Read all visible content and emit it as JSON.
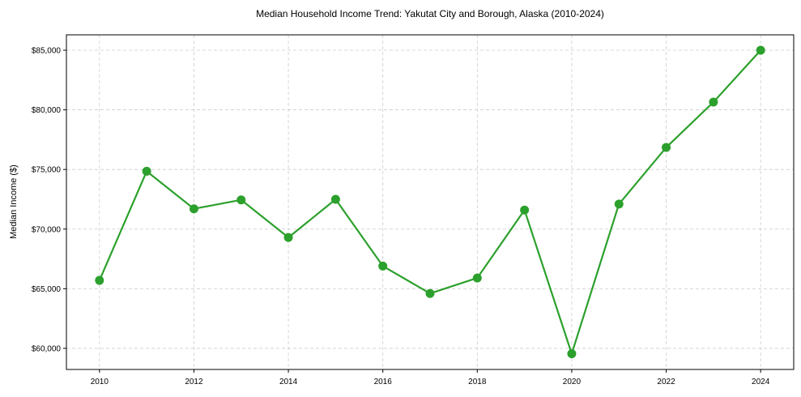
{
  "chart_data": {
    "type": "line",
    "title": "Median Household Income Trend: Yakutat City and Borough, Alaska (2010-2024)",
    "xlabel": "",
    "ylabel": "Median Income ($)",
    "x": [
      2010,
      2011,
      2012,
      2013,
      2014,
      2015,
      2016,
      2017,
      2018,
      2019,
      2020,
      2021,
      2022,
      2023,
      2024
    ],
    "series": [
      {
        "name": "Median Household Income",
        "color": "#2ca02c",
        "values": [
          65700,
          74850,
          71700,
          72450,
          69300,
          72500,
          66900,
          64600,
          65900,
          71600,
          59550,
          72100,
          76850,
          80650,
          85000
        ]
      }
    ],
    "xticks": [
      2010,
      2012,
      2014,
      2016,
      2018,
      2020,
      2022,
      2024
    ],
    "yticks": [
      60000,
      65000,
      70000,
      75000,
      80000,
      85000
    ],
    "ytick_labels": [
      "$60,000",
      "$65,000",
      "$70,000",
      "$75,000",
      "$80,000",
      "$85,000"
    ],
    "xlim": [
      2009.3,
      2024.7
    ],
    "ylim": [
      58230,
      86290
    ],
    "grid": true,
    "legend": null
  }
}
